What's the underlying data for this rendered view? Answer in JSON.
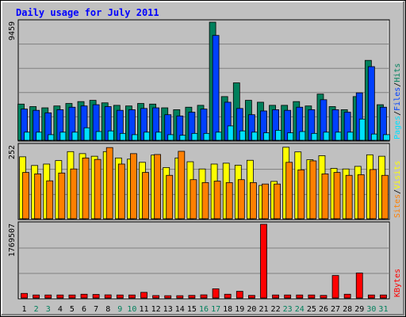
{
  "chart_data": {
    "type": "bar",
    "title": "Daily usage for July 2011",
    "categories": [
      "1",
      "2",
      "3",
      "4",
      "5",
      "6",
      "7",
      "8",
      "9",
      "10",
      "11",
      "12",
      "13",
      "14",
      "15",
      "16",
      "17",
      "18",
      "19",
      "20",
      "21",
      "22",
      "23",
      "24",
      "25",
      "26",
      "27",
      "28",
      "29",
      "30",
      "31"
    ],
    "weekend_days": [
      "2",
      "3",
      "9",
      "10",
      "16",
      "17",
      "23",
      "24",
      "30",
      "31"
    ],
    "panels": [
      {
        "id": "hits",
        "ymax_label": "9459",
        "ylim": [
          0,
          9459
        ],
        "labels": [
          "Pages",
          "Files",
          "Hits"
        ],
        "series": [
          {
            "name": "Hits",
            "color": "#00805c",
            "values": [
              2900,
              2700,
              2600,
              2750,
              2950,
              3100,
              3200,
              3000,
              2800,
              2750,
              2950,
              2900,
              2600,
              2450,
              2650,
              2800,
              9459,
              3500,
              4600,
              3200,
              3050,
              2800,
              2800,
              3100,
              2750,
              3700,
              2700,
              2450,
              3500,
              6400,
              2850
            ]
          },
          {
            "name": "Files",
            "color": "#0040ff",
            "values": [
              2500,
              2400,
              2200,
              2450,
              2650,
              2750,
              2850,
              2700,
              2400,
              2450,
              2550,
              2600,
              2050,
              1950,
              2250,
              2500,
              8400,
              3050,
              2550,
              2050,
              2350,
              2450,
              2400,
              2650,
              2450,
              3250,
              2450,
              2250,
              3800,
              5900,
              2650
            ]
          },
          {
            "name": "Pages",
            "color": "#00e0ff",
            "values": [
              650,
              650,
              450,
              650,
              650,
              1000,
              700,
              750,
              550,
              450,
              650,
              650,
              450,
              400,
              550,
              550,
              650,
              1150,
              750,
              650,
              600,
              800,
              600,
              700,
              550,
              650,
              650,
              650,
              1700,
              500,
              450
            ]
          }
        ]
      },
      {
        "id": "visits",
        "ymax_label": "252",
        "ylim": [
          0,
          252
        ],
        "labels": [
          "Sites",
          "Visits"
        ],
        "series": [
          {
            "name": "Visits",
            "color": "#ffff00",
            "values": [
              214,
              184,
              189,
              201,
              232,
              225,
              216,
              232,
              210,
              206,
              195,
              220,
              177,
              210,
              197,
              172,
              189,
              192,
              185,
              202,
              115,
              129,
              247,
              231,
              204,
              218,
              174,
              172,
              181,
              221,
              216
            ]
          },
          {
            "name": "Sites",
            "color": "#ff8000",
            "values": [
              160,
              155,
              131,
              158,
              172,
              210,
              205,
              246,
              189,
              225,
              160,
              222,
              150,
              233,
              135,
              125,
              130,
              125,
              135,
              125,
              120,
              120,
              195,
              169,
              200,
              155,
              160,
              150,
              152,
              170,
              150
            ]
          }
        ]
      },
      {
        "id": "kbytes",
        "ymax_label": "1769507",
        "ylim": [
          0,
          1769507
        ],
        "labels": [
          "KBytes"
        ],
        "series": [
          {
            "name": "KBytes",
            "color": "#ff0000",
            "values": [
              110000,
              72000,
              72000,
              72000,
              72000,
              90000,
              85000,
              75000,
              72000,
              72000,
              135000,
              58000,
              55000,
              55000,
              62000,
              75000,
              220000,
              90000,
              160000,
              62000,
              1769507,
              72000,
              72000,
              72000,
              72000,
              62000,
              540000,
              90000,
              600000,
              72000,
              72000
            ]
          }
        ]
      }
    ]
  }
}
